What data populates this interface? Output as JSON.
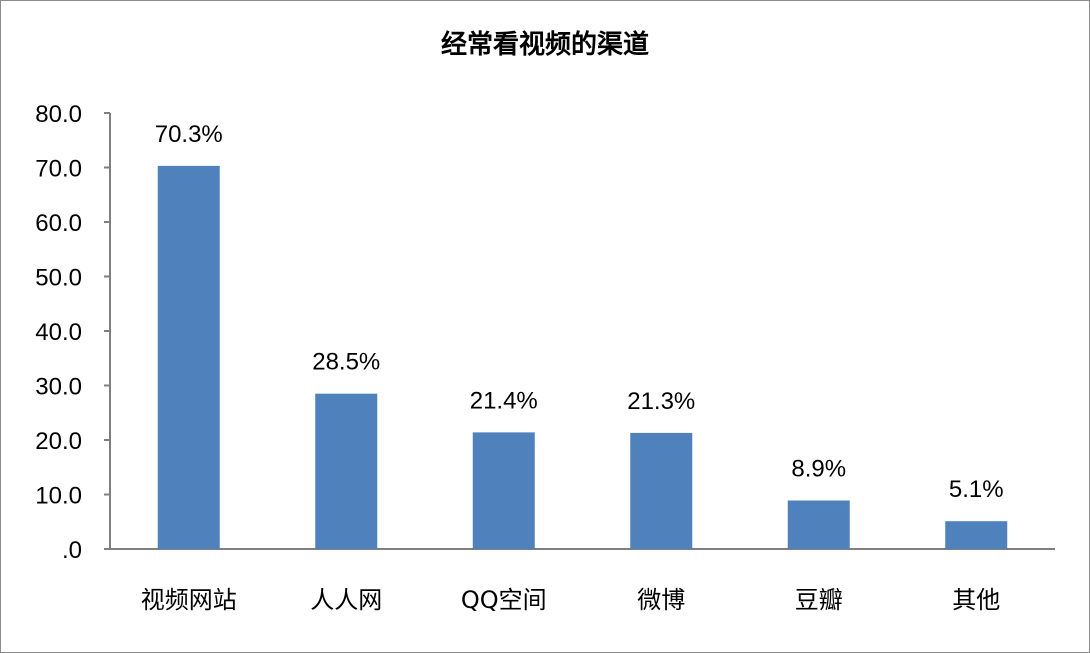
{
  "chart_data": {
    "type": "bar",
    "title": "经常看视频的渠道",
    "categories": [
      "视频网站",
      "人人网",
      "QQ空间",
      "微博",
      "豆瓣",
      "其他"
    ],
    "values": [
      70.3,
      28.5,
      21.4,
      21.3,
      8.9,
      5.1
    ],
    "data_labels": [
      "70.3%",
      "28.5%",
      "21.4%",
      "21.3%",
      "8.9%",
      "5.1%"
    ],
    "yticks": [
      ".0",
      "10.0",
      "20.0",
      "30.0",
      "40.0",
      "50.0",
      "60.0",
      "70.0",
      "80.0"
    ],
    "ylim": [
      0,
      80
    ],
    "xlabel": "",
    "ylabel": "",
    "grid": false,
    "legend": "none",
    "bar_color": "#4f81bd",
    "axis_color": "#7f7f7f"
  }
}
